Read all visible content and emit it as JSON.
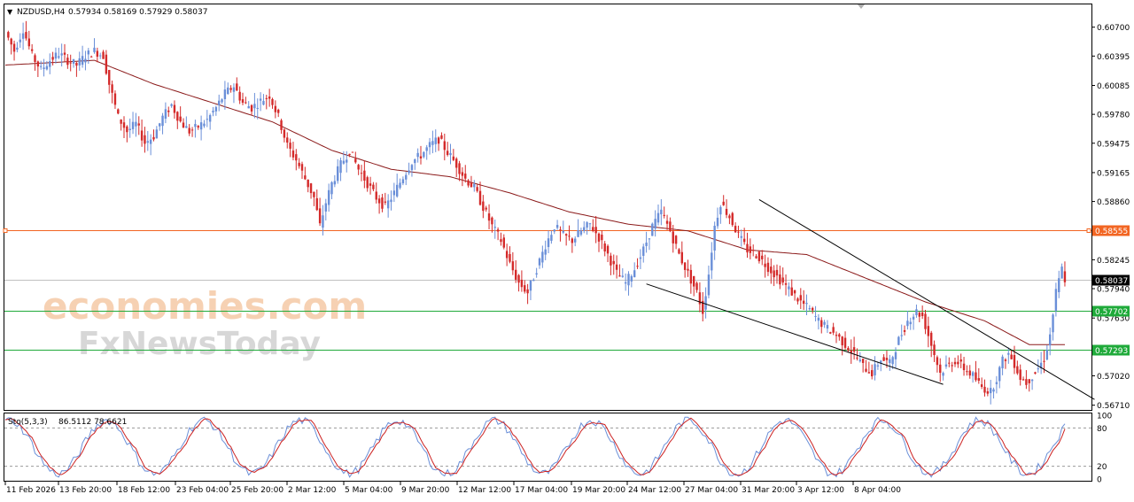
{
  "header": {
    "symbol_label": "NZDUSD,H4",
    "ohlc": "0.57934 0.58169 0.57929 0.58037"
  },
  "price_axis": {
    "ticks": [
      "0.60700",
      "0.60395",
      "0.60085",
      "0.59780",
      "0.59475",
      "0.59165",
      "0.58860",
      "0.58245",
      "0.57940",
      "0.57630",
      "0.57020",
      "0.56710"
    ],
    "range": [
      0.5666,
      0.6094
    ]
  },
  "levels": [
    {
      "name": "resistance",
      "value": 0.58555,
      "label": "0.58555",
      "color": "#f26522"
    },
    {
      "name": "current-price",
      "value": 0.58037,
      "label": "0.58037",
      "color": "#c0c0c0"
    },
    {
      "name": "support-1",
      "value": 0.57702,
      "label": "0.57702",
      "color": "#1faa3a"
    },
    {
      "name": "support-2",
      "value": 0.57293,
      "label": "0.57293",
      "color": "#1faa3a"
    }
  ],
  "watermark": {
    "line1": "economies.com",
    "line2": "FxNewsToday"
  },
  "oscillator": {
    "label": "Sto(5,3,3)",
    "values": "86.5112 78.6621",
    "ticks": [
      "100",
      "80",
      "20",
      "0"
    ],
    "main_color": "#6a8fd8",
    "signal_color": "#cc2222"
  },
  "time_axis": {
    "ticks": [
      "11 Feb 2026",
      "13 Feb 20:00",
      "18 Feb 12:00",
      "23 Feb 04:00",
      "25 Feb 20:00",
      "2 Mar 12:00",
      "5 Mar 04:00",
      "9 Mar 20:00",
      "12 Mar 12:00",
      "17 Mar 04:00",
      "19 Mar 20:00",
      "24 Mar 12:00",
      "27 Mar 04:00",
      "31 Mar 20:00",
      "3 Apr 12:00",
      "8 Apr 04:00"
    ]
  },
  "chart_data": {
    "type": "candlestick",
    "symbol": "NZDUSD",
    "timeframe": "H4",
    "bull_color": "#6a8fd8",
    "bear_color": "#d42a2a",
    "ma_color": "#8b1a1a",
    "trendline_color": "#000000",
    "ylim": [
      0.5666,
      0.6094
    ],
    "close_path": [
      [
        0,
        0.6065
      ],
      [
        3,
        0.6045
      ],
      [
        6,
        0.6068
      ],
      [
        9,
        0.604
      ],
      [
        12,
        0.6025
      ],
      [
        15,
        0.6035
      ],
      [
        18,
        0.6042
      ],
      [
        21,
        0.6035
      ],
      [
        24,
        0.603
      ],
      [
        27,
        0.604
      ],
      [
        30,
        0.6045
      ],
      [
        33,
        0.604
      ],
      [
        35,
        0.601
      ],
      [
        38,
        0.5975
      ],
      [
        41,
        0.596
      ],
      [
        44,
        0.5968
      ],
      [
        47,
        0.5948
      ],
      [
        50,
        0.5955
      ],
      [
        53,
        0.5975
      ],
      [
        56,
        0.5988
      ],
      [
        59,
        0.597
      ],
      [
        62,
        0.596
      ],
      [
        65,
        0.5965
      ],
      [
        68,
        0.5972
      ],
      [
        71,
        0.5985
      ],
      [
        74,
        0.6
      ],
      [
        77,
        0.6008
      ],
      [
        80,
        0.599
      ],
      [
        83,
        0.5985
      ],
      [
        86,
        0.5992
      ],
      [
        89,
        0.5998
      ],
      [
        92,
        0.5975
      ],
      [
        95,
        0.5945
      ],
      [
        98,
        0.593
      ],
      [
        101,
        0.591
      ],
      [
        104,
        0.589
      ],
      [
        106,
        0.586
      ],
      [
        108,
        0.5885
      ],
      [
        110,
        0.5905
      ],
      [
        113,
        0.5925
      ],
      [
        116,
        0.594
      ],
      [
        119,
        0.592
      ],
      [
        122,
        0.5905
      ],
      [
        125,
        0.589
      ],
      [
        128,
        0.588
      ],
      [
        131,
        0.5895
      ],
      [
        134,
        0.5912
      ],
      [
        137,
        0.5928
      ],
      [
        140,
        0.5935
      ],
      [
        143,
        0.5945
      ],
      [
        146,
        0.5952
      ],
      [
        149,
        0.5938
      ],
      [
        152,
        0.5925
      ],
      [
        155,
        0.591
      ],
      [
        158,
        0.59
      ],
      [
        161,
        0.588
      ],
      [
        164,
        0.586
      ],
      [
        167,
        0.5845
      ],
      [
        170,
        0.582
      ],
      [
        173,
        0.58
      ],
      [
        176,
        0.579
      ],
      [
        179,
        0.5815
      ],
      [
        182,
        0.584
      ],
      [
        185,
        0.586
      ],
      [
        188,
        0.585
      ],
      [
        191,
        0.5845
      ],
      [
        194,
        0.5855
      ],
      [
        197,
        0.5862
      ],
      [
        200,
        0.5848
      ],
      [
        203,
        0.583
      ],
      [
        206,
        0.581
      ],
      [
        209,
        0.58
      ],
      [
        212,
        0.5815
      ],
      [
        215,
        0.5835
      ],
      [
        218,
        0.586
      ],
      [
        221,
        0.5875
      ],
      [
        224,
        0.5855
      ],
      [
        227,
        0.583
      ],
      [
        230,
        0.581
      ],
      [
        233,
        0.579
      ],
      [
        235,
        0.577
      ],
      [
        237,
        0.581
      ],
      [
        239,
        0.586
      ],
      [
        241,
        0.5885
      ],
      [
        244,
        0.587
      ],
      [
        247,
        0.585
      ],
      [
        250,
        0.5835
      ],
      [
        253,
        0.583
      ],
      [
        256,
        0.582
      ],
      [
        259,
        0.581
      ],
      [
        262,
        0.58
      ],
      [
        265,
        0.579
      ],
      [
        268,
        0.578
      ],
      [
        271,
        0.5772
      ],
      [
        274,
        0.576
      ],
      [
        277,
        0.5752
      ],
      [
        280,
        0.5745
      ],
      [
        283,
        0.5735
      ],
      [
        286,
        0.5725
      ],
      [
        289,
        0.5712
      ],
      [
        292,
        0.5705
      ],
      [
        295,
        0.572
      ],
      [
        298,
        0.5715
      ],
      [
        301,
        0.574
      ],
      [
        304,
        0.576
      ],
      [
        307,
        0.577
      ],
      [
        309,
        0.5765
      ],
      [
        311,
        0.5745
      ],
      [
        313,
        0.5725
      ],
      [
        315,
        0.5705
      ],
      [
        317,
        0.5712
      ],
      [
        320,
        0.5718
      ],
      [
        323,
        0.571
      ],
      [
        326,
        0.5702
      ],
      [
        329,
        0.569
      ],
      [
        332,
        0.5685
      ],
      [
        334,
        0.57
      ],
      [
        336,
        0.5718
      ],
      [
        338,
        0.5725
      ],
      [
        340,
        0.5715
      ],
      [
        342,
        0.57
      ],
      [
        344,
        0.5695
      ],
      [
        346,
        0.5702
      ],
      [
        348,
        0.571
      ],
      [
        350,
        0.572
      ],
      [
        352,
        0.5745
      ],
      [
        354,
        0.579
      ],
      [
        356,
        0.5815
      ],
      [
        357,
        0.5804
      ]
    ],
    "ma_path": [
      [
        0,
        0.603
      ],
      [
        30,
        0.6035
      ],
      [
        50,
        0.601
      ],
      [
        70,
        0.599
      ],
      [
        90,
        0.597
      ],
      [
        110,
        0.594
      ],
      [
        130,
        0.592
      ],
      [
        150,
        0.5912
      ],
      [
        170,
        0.5895
      ],
      [
        190,
        0.5875
      ],
      [
        210,
        0.5862
      ],
      [
        230,
        0.5855
      ],
      [
        250,
        0.5835
      ],
      [
        270,
        0.583
      ],
      [
        290,
        0.5805
      ],
      [
        310,
        0.578
      ],
      [
        330,
        0.576
      ],
      [
        345,
        0.5735
      ],
      [
        357,
        0.5735
      ]
    ],
    "trendlines": [
      {
        "name": "upper-channel",
        "from": [
          254,
          0.5888
        ],
        "to": [
          367,
          0.5677
        ]
      },
      {
        "name": "lower-channel",
        "from": [
          216,
          0.5799
        ],
        "to": [
          316,
          0.5693
        ]
      }
    ],
    "stochastic": {
      "params": "5,3,3",
      "main": 86.5112,
      "signal": 78.6621,
      "levels": [
        80,
        20
      ]
    },
    "x_ticks": [
      "11 Feb 2026",
      "13 Feb 20:00",
      "18 Feb 12:00",
      "23 Feb 04:00",
      "25 Feb 20:00",
      "2 Mar 12:00",
      "5 Mar 04:00",
      "9 Mar 20:00",
      "12 Mar 12:00",
      "17 Mar 04:00",
      "19 Mar 20:00",
      "24 Mar 12:00",
      "27 Mar 04:00",
      "31 Mar 20:00",
      "3 Apr 12:00",
      "8 Apr 04:00"
    ]
  }
}
